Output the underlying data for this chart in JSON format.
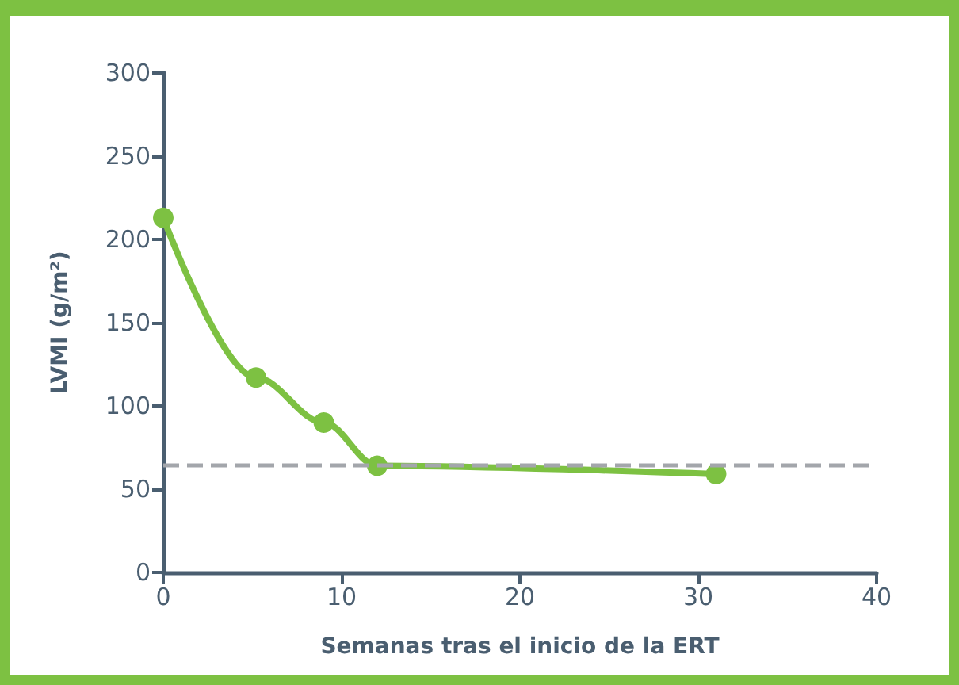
{
  "chart_data": {
    "type": "line",
    "xlabel": "Semanas tras el inicio de la ERT",
    "ylabel": "LVMI (g/m²)",
    "x": [
      0,
      5.2,
      9,
      12,
      31
    ],
    "series": [
      {
        "color": "#7dc142",
        "values": [
          213,
          117,
          90,
          64,
          59
        ]
      }
    ],
    "xlim": [
      0,
      40
    ],
    "xticks": [
      0,
      10,
      20,
      30,
      40
    ],
    "ylim": [
      0,
      300
    ],
    "yticks": [
      0,
      50,
      100,
      150,
      200,
      250,
      300
    ],
    "ref_lines": [
      {
        "axis": "y",
        "value": 65,
        "color": "#a3a6ab",
        "line_style": "dashed"
      }
    ],
    "marker": "circle",
    "line_style": "solid",
    "grid": false
  }
}
